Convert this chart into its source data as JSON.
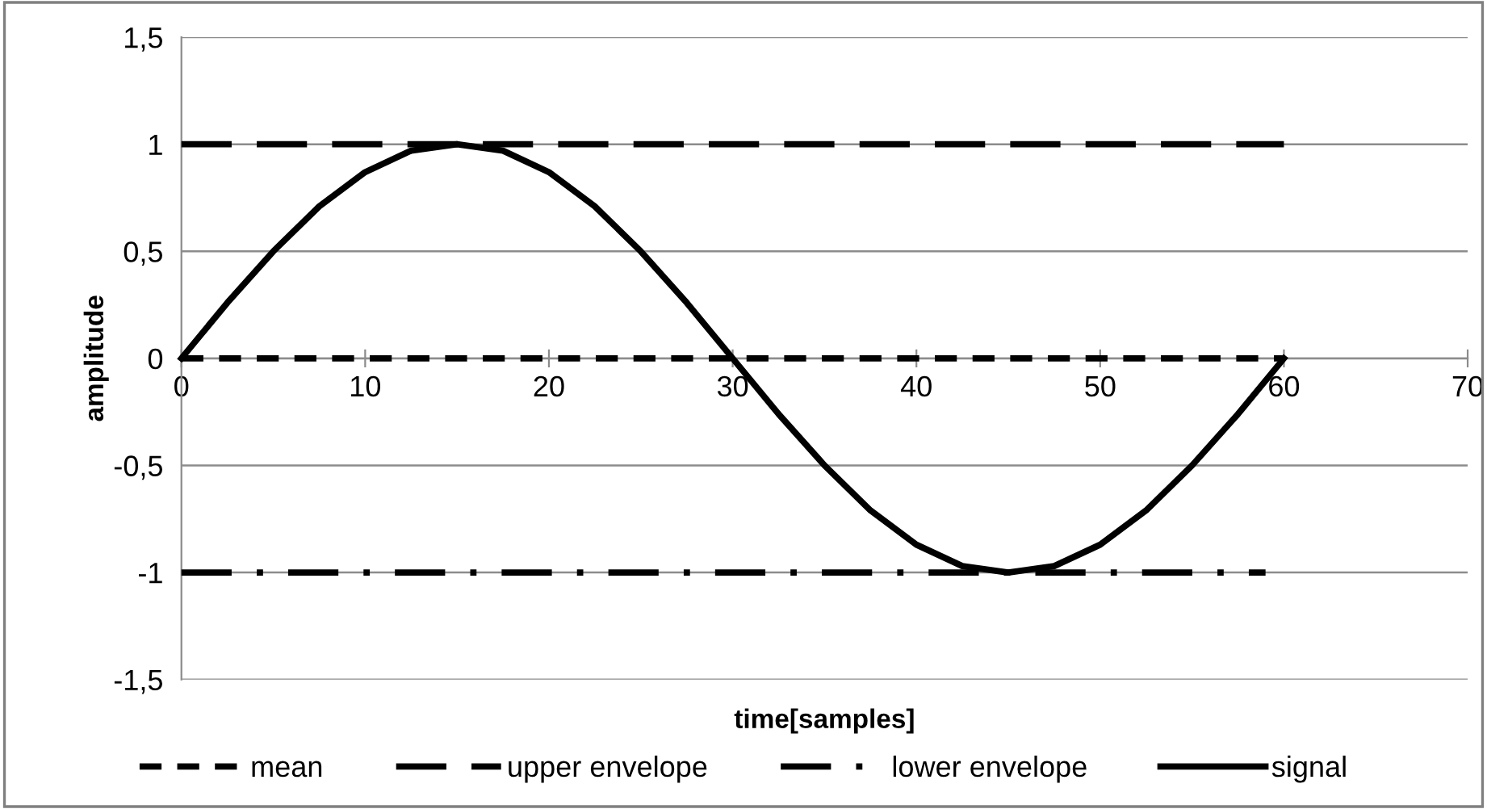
{
  "chart_data": {
    "type": "line",
    "xlabel": "time[samples]",
    "ylabel": "amplitude",
    "xlim": [
      0,
      70
    ],
    "xticks": [
      0,
      10,
      20,
      30,
      40,
      50,
      60,
      70
    ],
    "ylim": [
      -1.5,
      1.5
    ],
    "yticks": [
      {
        "value": -1.5,
        "label": "-1,5"
      },
      {
        "value": -1,
        "label": "-1"
      },
      {
        "value": -0.5,
        "label": "-0,5"
      },
      {
        "value": 0,
        "label": "0"
      },
      {
        "value": 0.5,
        "label": "0,5"
      },
      {
        "value": 1,
        "label": "1"
      },
      {
        "value": 1.5,
        "label": "1,5"
      }
    ],
    "grid": "y",
    "legend": "bottom",
    "marker": "none",
    "series": [
      {
        "name": "mean",
        "color": "#000000",
        "line_style": "dashed",
        "x": [
          0,
          60
        ],
        "values": [
          0,
          0
        ]
      },
      {
        "name": "upper envelope",
        "color": "#000000",
        "line_style": "longdash",
        "x": [
          0,
          60
        ],
        "values": [
          1,
          1
        ]
      },
      {
        "name": "lower envelope",
        "color": "#000000",
        "line_style": "dashdot",
        "x": [
          0,
          59
        ],
        "values": [
          -1,
          -1
        ]
      },
      {
        "name": "signal",
        "color": "#000000",
        "line_style": "solid",
        "x": [
          0,
          2.5,
          5,
          7.5,
          10,
          12.5,
          15,
          17.5,
          20,
          22.5,
          25,
          27.5,
          30,
          32.5,
          35,
          37.5,
          40,
          42.5,
          45,
          47.5,
          50,
          52.5,
          55,
          57.5,
          60
        ],
        "values": [
          0,
          0.26,
          0.5,
          0.71,
          0.87,
          0.97,
          1,
          0.97,
          0.87,
          0.71,
          0.5,
          0.26,
          0,
          -0.26,
          -0.5,
          -0.71,
          -0.87,
          -0.97,
          -1,
          -0.97,
          -0.87,
          -0.71,
          -0.5,
          -0.26,
          0
        ]
      }
    ]
  }
}
